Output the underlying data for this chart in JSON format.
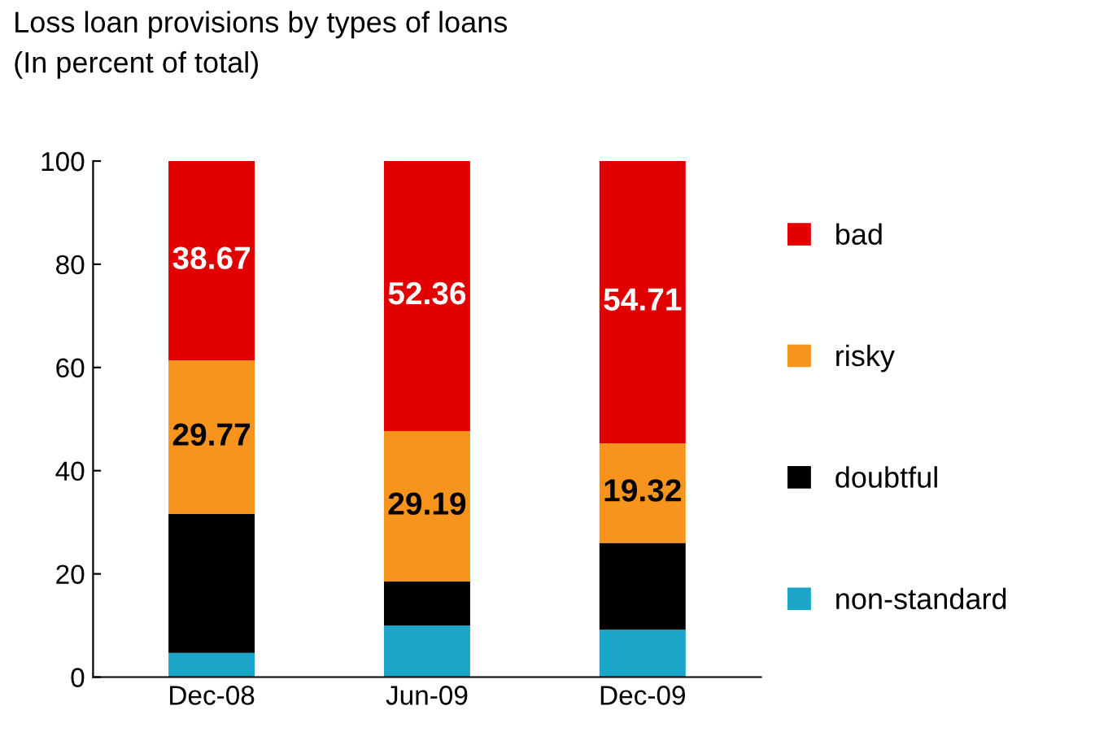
{
  "chart_data": {
    "type": "bar",
    "title": "Loss loan provisions by types of loans",
    "subtitle": "(In percent of total)",
    "categories": [
      "Dec-08",
      "Jun-09",
      "Dec-09"
    ],
    "stacked": true,
    "series": [
      {
        "name": "non-standard",
        "color": "#1ba5c8",
        "values": [
          4.7,
          10.0,
          9.2
        ]
      },
      {
        "name": "doubtful",
        "color": "#000000",
        "values": [
          26.9,
          8.5,
          16.8
        ]
      },
      {
        "name": "risky",
        "color": "#f7941d",
        "values": [
          29.77,
          29.19,
          19.32
        ],
        "value_labels": [
          "29.77",
          "29.19",
          "19.32"
        ]
      },
      {
        "name": "bad",
        "color": "#e00000",
        "values": [
          38.67,
          52.36,
          54.71
        ],
        "value_labels": [
          "38.67",
          "52.36",
          "54.71"
        ]
      }
    ],
    "ylim": [
      0,
      100
    ],
    "yticks": [
      0,
      20,
      40,
      60,
      80,
      100
    ],
    "grid": false,
    "legend": "right"
  }
}
